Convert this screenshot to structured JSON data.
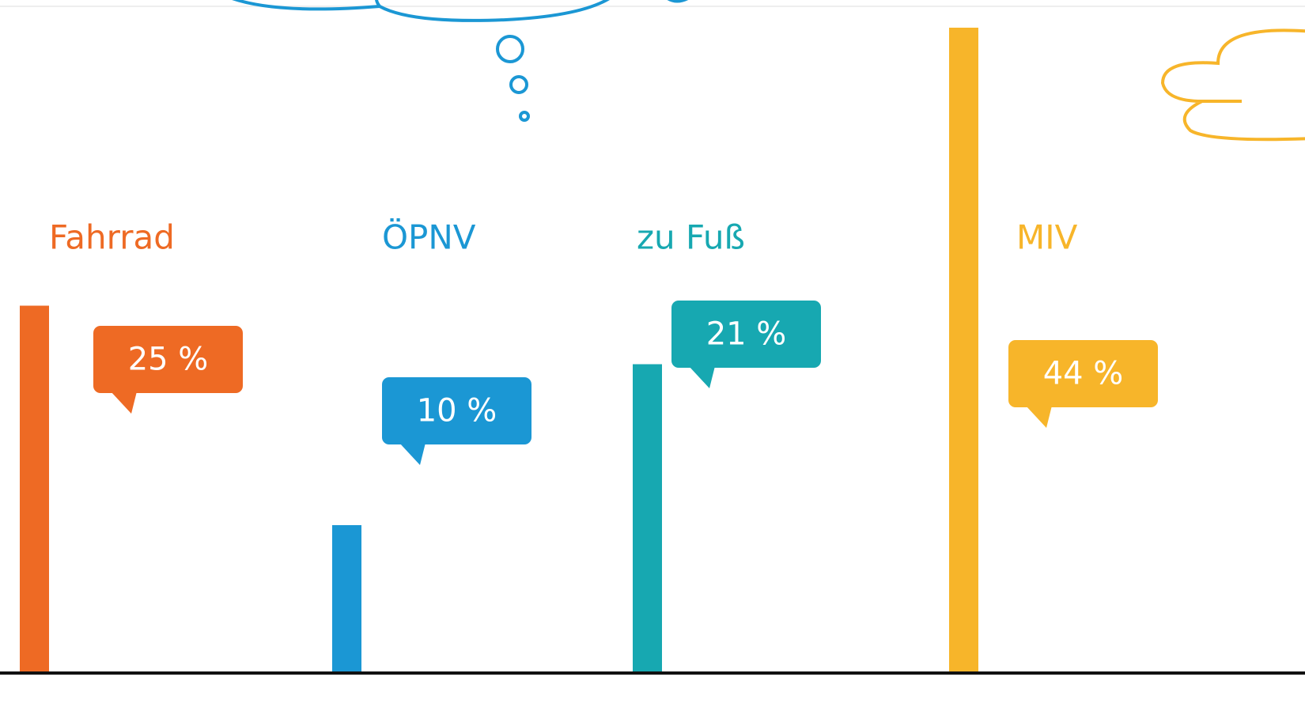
{
  "chart_data": {
    "type": "bar",
    "categories": [
      "Fahrrad",
      "ÖPNV",
      "zu Fuß",
      "MIV"
    ],
    "values": [
      25,
      10,
      21,
      44
    ],
    "value_labels": [
      "25 %",
      "10 %",
      "21 %",
      "44 %"
    ],
    "colors": [
      "#ee6a24",
      "#1b97d4",
      "#17a8b1",
      "#f7b52a"
    ]
  }
}
